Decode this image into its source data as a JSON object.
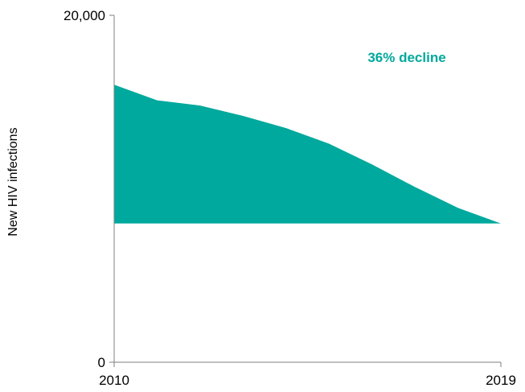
{
  "chart_data": {
    "type": "area",
    "title": "",
    "xlabel": "",
    "ylabel": "New HIV infections",
    "x": [
      2010,
      2011,
      2012,
      2013,
      2014,
      2015,
      2016,
      2017,
      2018,
      2019
    ],
    "series": [
      {
        "values": [
          16000,
          15100,
          14800,
          14200,
          13500,
          12600,
          11400,
          10100,
          8900,
          8000
        ]
      }
    ],
    "baseline": 8000,
    "ylim": [
      0,
      20000
    ],
    "xlim": [
      2010,
      2019
    ],
    "x_tick_labels": [
      "2010",
      "2019"
    ],
    "y_tick_labels": [
      "0",
      "20,000"
    ],
    "annotation": "36% decline",
    "grid": false,
    "legend": "none"
  },
  "colors": {
    "fill": "#00a99d",
    "annotation": "#00a99d",
    "axis": "#7f7f7f"
  }
}
